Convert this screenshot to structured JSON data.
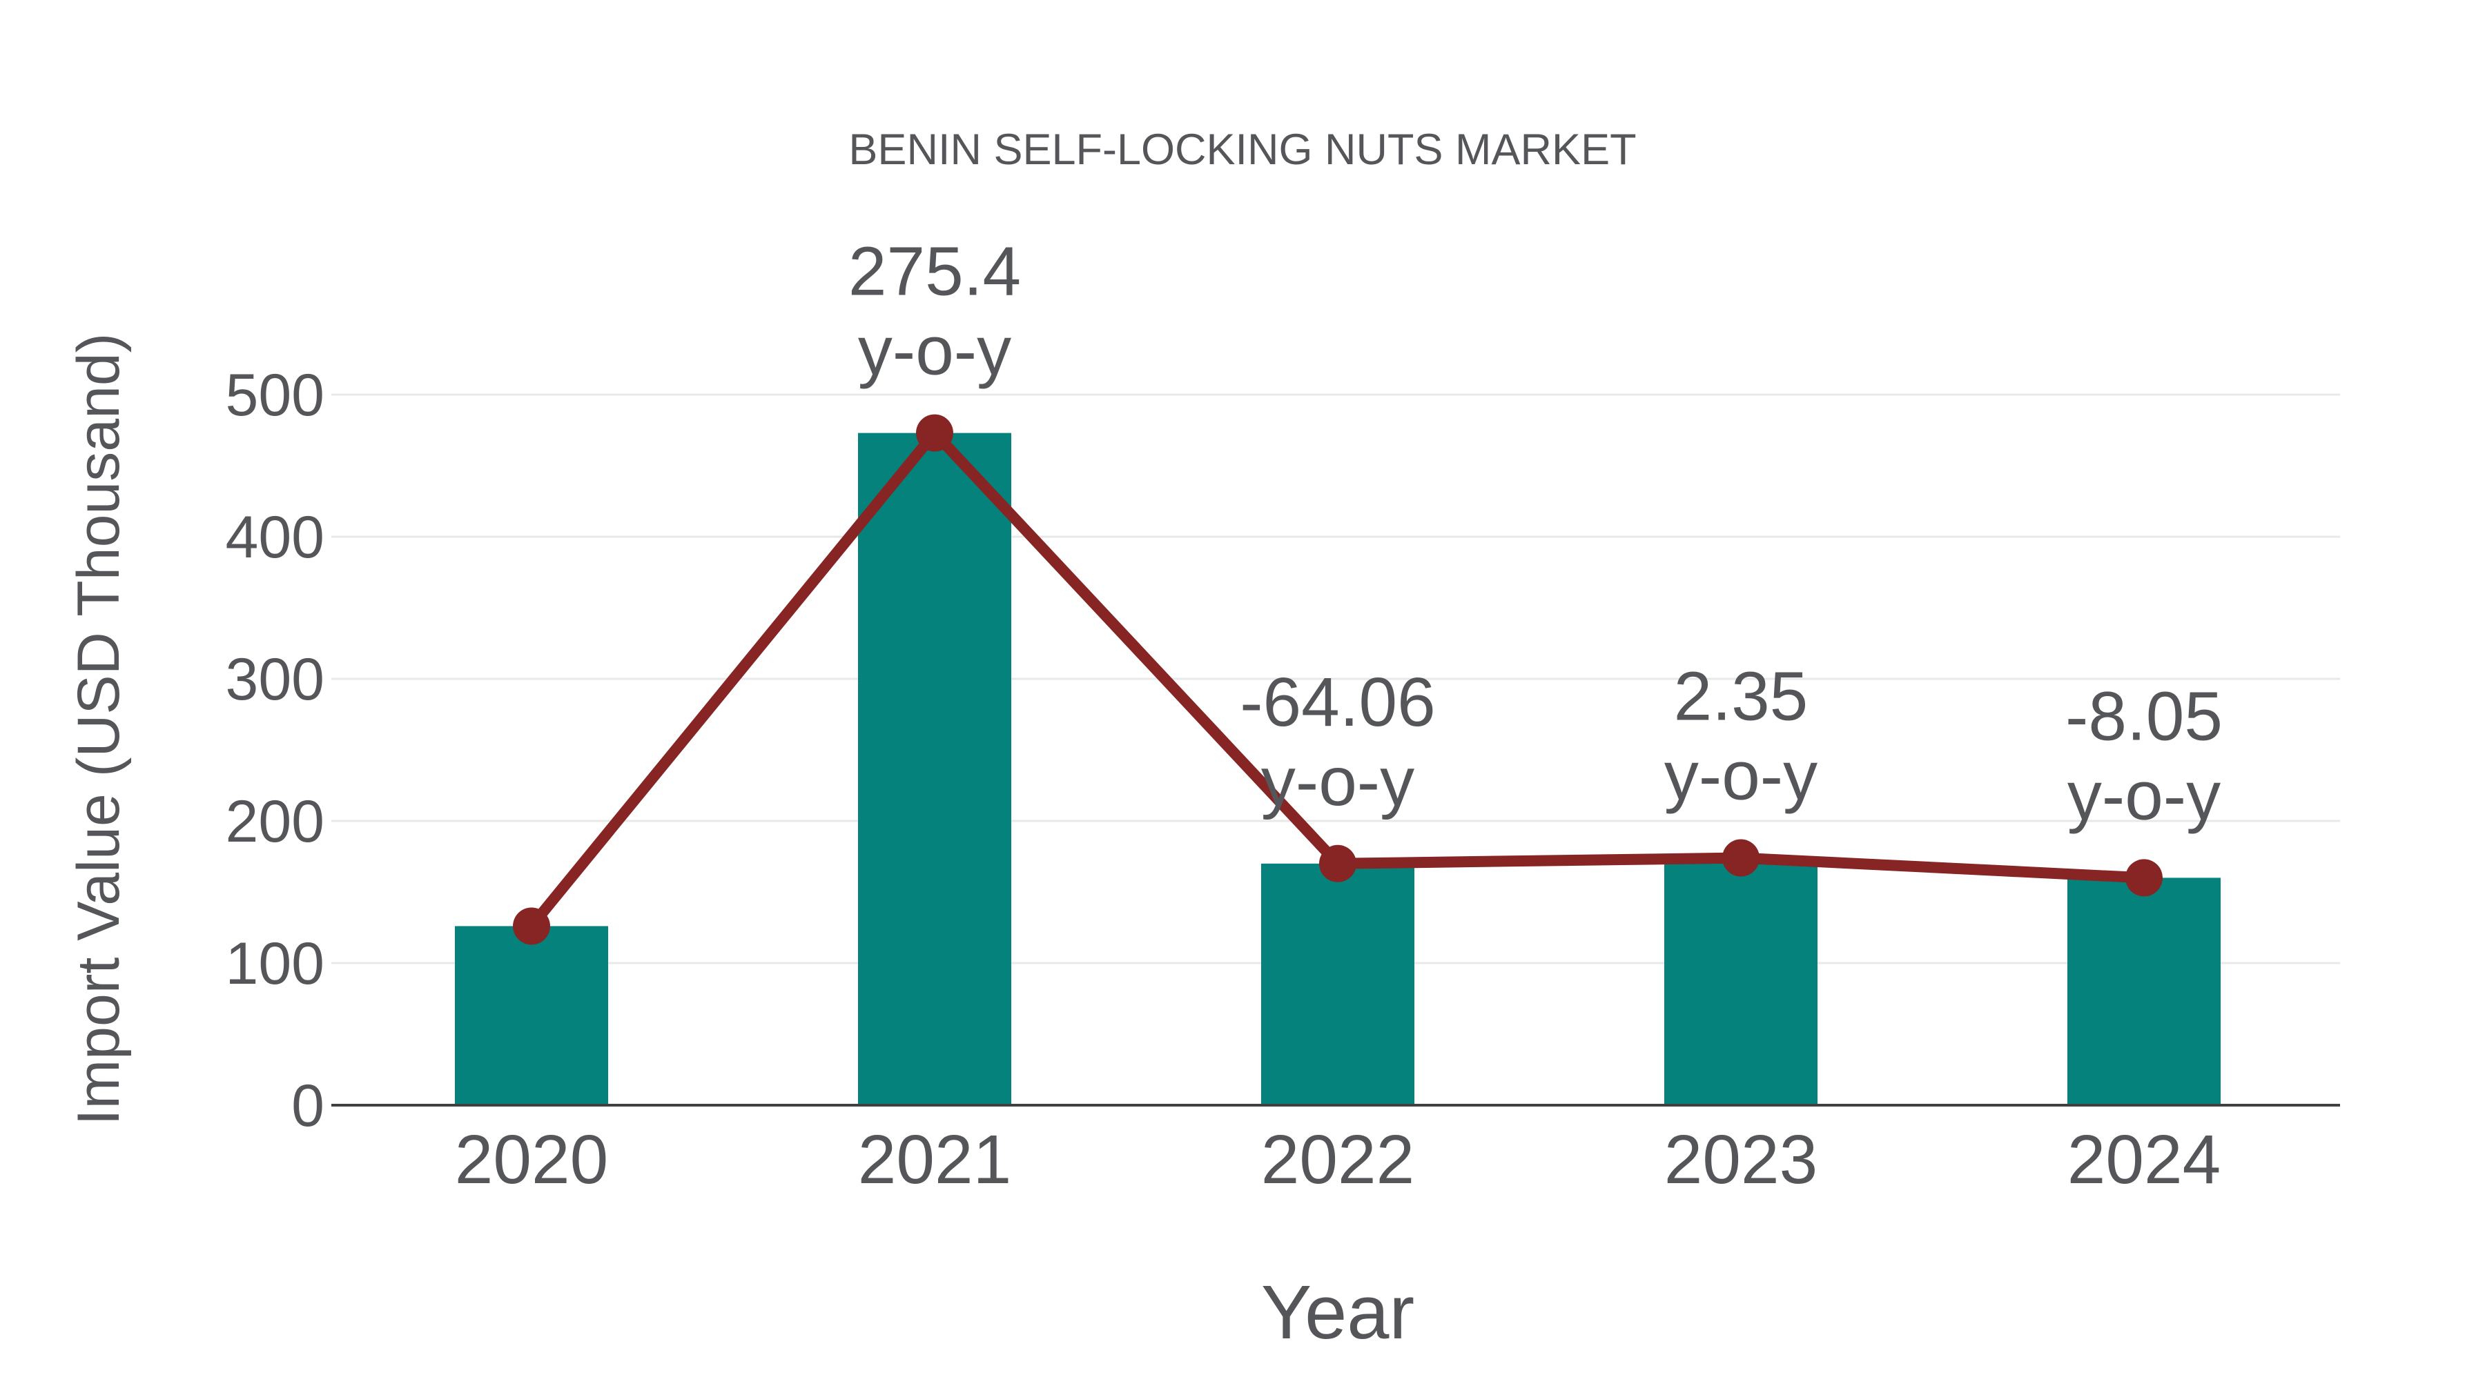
{
  "page": {
    "background": "#FFFFFF"
  },
  "chart_data": {
    "type": "bar+line",
    "title": "BENIN SELF-LOCKING NUTS MARKET",
    "xlabel": "Year",
    "ylabel": "Import Value (USD Thousand)",
    "categories": [
      "2020",
      "2021",
      "2022",
      "2023",
      "2024"
    ],
    "series": [
      {
        "name": "Import Value bars",
        "type": "bar",
        "values": [
          126,
          473,
          170,
          174,
          160
        ],
        "color": "#05827C"
      },
      {
        "name": "Import Value trend line",
        "type": "line",
        "values": [
          126,
          473,
          170,
          174,
          160
        ],
        "color": "#862523"
      }
    ],
    "annotations": [
      {
        "category": "2021",
        "value_label": "275.4",
        "suffix": "y-o-y"
      },
      {
        "category": "2022",
        "value_label": "-64.06",
        "suffix": "y-o-y"
      },
      {
        "category": "2023",
        "value_label": "2.35",
        "suffix": "y-o-y"
      },
      {
        "category": "2024",
        "value_label": "-8.05",
        "suffix": "y-o-y"
      }
    ],
    "yticks": [
      0,
      100,
      200,
      300,
      400,
      500
    ],
    "ylim": [
      0,
      630
    ],
    "grid": true,
    "legend": "none",
    "colors": {
      "bar": "#05827C",
      "line": "#862523",
      "marker": "#862523",
      "text": "#555659",
      "axis_line": "#3F4142",
      "gridline": "#E8E8E8",
      "background": "#FFFFFF"
    }
  }
}
